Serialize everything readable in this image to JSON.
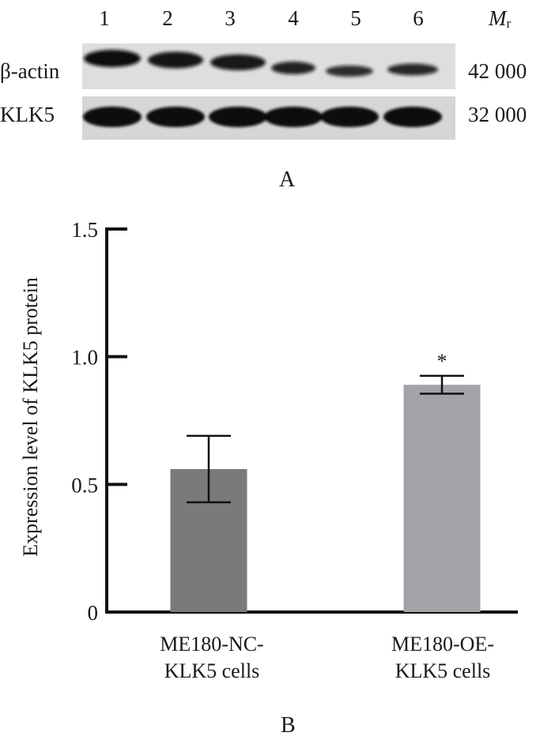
{
  "panel_a": {
    "label": "A",
    "lanes": [
      "1",
      "2",
      "3",
      "4",
      "5",
      "6"
    ],
    "mr_symbol": "M",
    "mr_sub": "r",
    "rows": [
      {
        "name": "β-actin",
        "mass": "42 000"
      },
      {
        "name": "KLK5",
        "mass": "32 000"
      }
    ]
  },
  "panel_b": {
    "label": "B"
  },
  "chart_data": {
    "type": "bar",
    "ylabel": "Expression level of KLK5 protein",
    "xlabel": "",
    "categories": [
      "ME180-NC-\nKLK5 cells",
      "ME180-OE-\nKLK5 cells"
    ],
    "category_lines": [
      [
        "ME180-NC-",
        "KLK5 cells"
      ],
      [
        "ME180-OE-",
        "KLK5 cells"
      ]
    ],
    "values": [
      0.56,
      0.89
    ],
    "errors": [
      0.13,
      0.035
    ],
    "annotations": [
      "",
      "*"
    ],
    "bar_colors": [
      "#7a7a7a",
      "#a3a3a8"
    ],
    "ylim": [
      0,
      1.5
    ],
    "yticks": [
      0,
      0.5,
      1.0,
      1.5
    ],
    "ytick_labels": [
      "0",
      "0.5",
      "1.0",
      "1.5"
    ],
    "grid": false
  }
}
